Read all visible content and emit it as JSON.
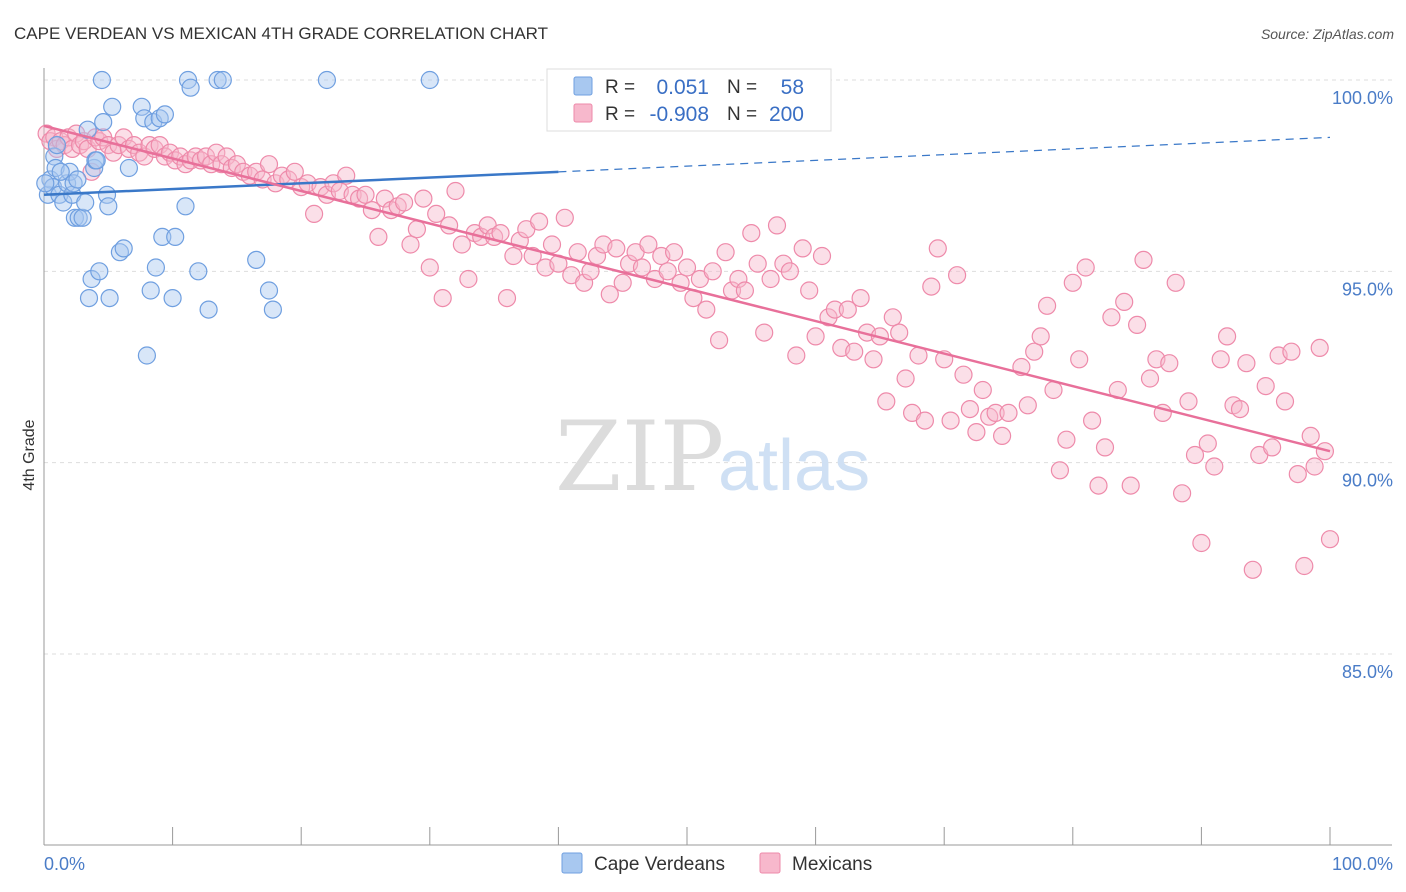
{
  "chart_data": {
    "type": "scatter",
    "title": "CAPE VERDEAN VS MEXICAN 4TH GRADE CORRELATION CHART",
    "source": "Source: ZipAtlas.com",
    "xlabel": "",
    "ylabel": "4th Grade",
    "xlim": [
      0,
      100
    ],
    "ylim": [
      80,
      100.8
    ],
    "x_tick_labels": {
      "left": "0.0%",
      "right": "100.0%"
    },
    "y_ticks": [
      {
        "value": 100,
        "label": "100.0%"
      },
      {
        "value": 95,
        "label": "95.0%"
      },
      {
        "value": 90,
        "label": "90.0%"
      },
      {
        "value": 85,
        "label": "85.0%"
      }
    ],
    "watermark": {
      "zip": "ZIP",
      "atlas": "atlas"
    },
    "colors": {
      "blue_fill": "#a8c8f0",
      "blue_stroke": "#6f9fe0",
      "blue_line": "#3a78c8",
      "pink_fill": "#f7b8cc",
      "pink_stroke": "#ee8aaa",
      "pink_line": "#e8709a",
      "grid": "#dddddd",
      "axis": "#999999"
    },
    "legend": {
      "rows": [
        {
          "r_label": "R =",
          "r_value": "0.051",
          "n_label": "N =",
          "n_value": "58",
          "series": "Cape Verdeans"
        },
        {
          "r_label": "R =",
          "r_value": "-0.908",
          "n_label": "N =",
          "n_value": "200",
          "series": "Mexicans"
        }
      ]
    },
    "series": [
      {
        "name": "Cape Verdeans",
        "regression": {
          "x0": 0,
          "y0": 97.0,
          "x1": 40,
          "y1": 97.6,
          "dash_x1": 100,
          "dash_y1": 98.5
        },
        "points": [
          [
            0.3,
            97.0
          ],
          [
            0.5,
            97.4
          ],
          [
            0.7,
            97.2
          ],
          [
            0.8,
            98.0
          ],
          [
            0.9,
            97.7
          ],
          [
            1.0,
            98.3
          ],
          [
            1.2,
            97.0
          ],
          [
            1.5,
            96.8
          ],
          [
            1.8,
            97.3
          ],
          [
            2.0,
            97.6
          ],
          [
            2.2,
            97.0
          ],
          [
            2.3,
            97.3
          ],
          [
            2.4,
            96.4
          ],
          [
            2.6,
            97.4
          ],
          [
            2.7,
            96.4
          ],
          [
            3.0,
            96.4
          ],
          [
            3.2,
            96.8
          ],
          [
            3.4,
            98.7
          ],
          [
            3.5,
            94.3
          ],
          [
            3.7,
            94.8
          ],
          [
            3.9,
            97.7
          ],
          [
            4.0,
            97.9
          ],
          [
            4.1,
            97.9
          ],
          [
            4.3,
            95.0
          ],
          [
            4.5,
            100.0
          ],
          [
            4.6,
            98.9
          ],
          [
            4.9,
            97.0
          ],
          [
            5.0,
            96.7
          ],
          [
            5.1,
            94.3
          ],
          [
            5.3,
            99.3
          ],
          [
            5.9,
            95.5
          ],
          [
            6.2,
            95.6
          ],
          [
            6.6,
            97.7
          ],
          [
            7.6,
            99.3
          ],
          [
            7.8,
            99.0
          ],
          [
            8.0,
            92.8
          ],
          [
            8.3,
            94.5
          ],
          [
            8.5,
            98.9
          ],
          [
            8.7,
            95.1
          ],
          [
            9.0,
            99.0
          ],
          [
            9.2,
            95.9
          ],
          [
            9.4,
            99.1
          ],
          [
            10.0,
            94.3
          ],
          [
            10.2,
            95.9
          ],
          [
            11.0,
            96.7
          ],
          [
            11.2,
            100.0
          ],
          [
            11.4,
            99.8
          ],
          [
            12.0,
            95.0
          ],
          [
            12.8,
            94.0
          ],
          [
            13.5,
            100.0
          ],
          [
            13.9,
            100.0
          ],
          [
            16.5,
            95.3
          ],
          [
            17.5,
            94.5
          ],
          [
            17.8,
            94.0
          ],
          [
            22.0,
            100.0
          ],
          [
            30.0,
            100.0
          ],
          [
            0.1,
            97.3
          ],
          [
            1.3,
            97.6
          ]
        ]
      },
      {
        "name": "Mexicans",
        "regression": {
          "x0": 0,
          "y0": 98.8,
          "x1": 100,
          "y1": 90.3
        },
        "points": [
          [
            0.2,
            98.6
          ],
          [
            0.5,
            98.4
          ],
          [
            0.8,
            98.5
          ],
          [
            1.0,
            98.2
          ],
          [
            1.3,
            98.4
          ],
          [
            1.6,
            98.3
          ],
          [
            1.9,
            98.5
          ],
          [
            2.2,
            98.2
          ],
          [
            2.5,
            98.6
          ],
          [
            2.8,
            98.3
          ],
          [
            3.1,
            98.4
          ],
          [
            3.4,
            98.2
          ],
          [
            3.7,
            97.6
          ],
          [
            4.0,
            98.5
          ],
          [
            4.3,
            98.4
          ],
          [
            4.6,
            98.5
          ],
          [
            5.0,
            98.3
          ],
          [
            5.4,
            98.1
          ],
          [
            5.8,
            98.3
          ],
          [
            6.2,
            98.5
          ],
          [
            6.6,
            98.2
          ],
          [
            7.0,
            98.3
          ],
          [
            7.4,
            98.1
          ],
          [
            7.8,
            98.0
          ],
          [
            8.2,
            98.3
          ],
          [
            8.6,
            98.2
          ],
          [
            9.0,
            98.3
          ],
          [
            9.4,
            98.0
          ],
          [
            9.8,
            98.1
          ],
          [
            10.2,
            97.9
          ],
          [
            10.6,
            98.0
          ],
          [
            11.0,
            97.8
          ],
          [
            11.4,
            97.9
          ],
          [
            11.8,
            98.0
          ],
          [
            12.2,
            97.9
          ],
          [
            12.6,
            98.0
          ],
          [
            13.0,
            97.8
          ],
          [
            13.4,
            98.1
          ],
          [
            13.8,
            97.8
          ],
          [
            14.2,
            98.0
          ],
          [
            14.6,
            97.7
          ],
          [
            15.0,
            97.8
          ],
          [
            15.5,
            97.6
          ],
          [
            16.0,
            97.5
          ],
          [
            16.5,
            97.6
          ],
          [
            17.0,
            97.4
          ],
          [
            17.5,
            97.8
          ],
          [
            18.0,
            97.3
          ],
          [
            18.5,
            97.5
          ],
          [
            19.0,
            97.4
          ],
          [
            19.5,
            97.6
          ],
          [
            20.0,
            97.2
          ],
          [
            20.5,
            97.3
          ],
          [
            21.0,
            96.5
          ],
          [
            21.5,
            97.2
          ],
          [
            22.0,
            97.0
          ],
          [
            22.5,
            97.3
          ],
          [
            23.0,
            97.1
          ],
          [
            23.5,
            97.5
          ],
          [
            24.0,
            97.0
          ],
          [
            24.5,
            96.9
          ],
          [
            25.0,
            97.0
          ],
          [
            25.5,
            96.6
          ],
          [
            26.0,
            95.9
          ],
          [
            26.5,
            96.9
          ],
          [
            27.0,
            96.6
          ],
          [
            27.5,
            96.7
          ],
          [
            28.0,
            96.8
          ],
          [
            28.5,
            95.7
          ],
          [
            29.0,
            96.1
          ],
          [
            29.5,
            96.9
          ],
          [
            30.0,
            95.1
          ],
          [
            30.5,
            96.5
          ],
          [
            31.0,
            94.3
          ],
          [
            31.5,
            96.2
          ],
          [
            32.0,
            97.1
          ],
          [
            32.5,
            95.7
          ],
          [
            33.0,
            94.8
          ],
          [
            33.5,
            96.0
          ],
          [
            34.0,
            95.9
          ],
          [
            34.5,
            96.2
          ],
          [
            35.0,
            95.9
          ],
          [
            35.5,
            96.0
          ],
          [
            36.0,
            94.3
          ],
          [
            36.5,
            95.4
          ],
          [
            37.0,
            95.8
          ],
          [
            37.5,
            96.1
          ],
          [
            38.0,
            95.4
          ],
          [
            38.5,
            96.3
          ],
          [
            39.0,
            95.1
          ],
          [
            39.5,
            95.7
          ],
          [
            40.0,
            95.2
          ],
          [
            40.5,
            96.4
          ],
          [
            41.0,
            94.9
          ],
          [
            41.5,
            95.5
          ],
          [
            42.0,
            94.7
          ],
          [
            42.5,
            95.0
          ],
          [
            43.0,
            95.4
          ],
          [
            43.5,
            95.7
          ],
          [
            44.0,
            94.4
          ],
          [
            44.5,
            95.6
          ],
          [
            45.0,
            94.7
          ],
          [
            45.5,
            95.2
          ],
          [
            46.0,
            95.5
          ],
          [
            46.5,
            95.1
          ],
          [
            47.0,
            95.7
          ],
          [
            47.5,
            94.8
          ],
          [
            48.0,
            95.4
          ],
          [
            48.5,
            95.0
          ],
          [
            49.0,
            95.5
          ],
          [
            49.5,
            94.7
          ],
          [
            50.0,
            95.1
          ],
          [
            50.5,
            94.3
          ],
          [
            51.0,
            94.8
          ],
          [
            51.5,
            94.0
          ],
          [
            52.0,
            95.0
          ],
          [
            52.5,
            93.2
          ],
          [
            53.0,
            95.5
          ],
          [
            53.5,
            94.5
          ],
          [
            54.0,
            94.8
          ],
          [
            54.5,
            94.5
          ],
          [
            55.0,
            96.0
          ],
          [
            55.5,
            95.2
          ],
          [
            56.0,
            93.4
          ],
          [
            56.5,
            94.8
          ],
          [
            57.0,
            96.2
          ],
          [
            57.5,
            95.2
          ],
          [
            58.0,
            95.0
          ],
          [
            58.5,
            92.8
          ],
          [
            59.0,
            95.6
          ],
          [
            59.5,
            94.5
          ],
          [
            60.0,
            93.3
          ],
          [
            60.5,
            95.4
          ],
          [
            61.0,
            93.8
          ],
          [
            61.5,
            94.0
          ],
          [
            62.0,
            93.0
          ],
          [
            62.5,
            94.0
          ],
          [
            63.0,
            92.9
          ],
          [
            63.5,
            94.3
          ],
          [
            64.0,
            93.4
          ],
          [
            64.5,
            92.7
          ],
          [
            65.0,
            93.3
          ],
          [
            65.5,
            91.6
          ],
          [
            66.0,
            93.8
          ],
          [
            66.5,
            93.4
          ],
          [
            67.0,
            92.2
          ],
          [
            67.5,
            91.3
          ],
          [
            68.0,
            92.8
          ],
          [
            68.5,
            91.1
          ],
          [
            69.0,
            94.6
          ],
          [
            69.5,
            95.6
          ],
          [
            70.0,
            92.7
          ],
          [
            70.5,
            91.1
          ],
          [
            71.0,
            94.9
          ],
          [
            71.5,
            92.3
          ],
          [
            72.0,
            91.4
          ],
          [
            72.5,
            90.8
          ],
          [
            73.0,
            91.9
          ],
          [
            73.5,
            91.2
          ],
          [
            74.0,
            91.3
          ],
          [
            74.5,
            90.7
          ],
          [
            75.0,
            91.3
          ],
          [
            76.0,
            92.5
          ],
          [
            76.5,
            91.5
          ],
          [
            77.0,
            92.9
          ],
          [
            77.5,
            93.3
          ],
          [
            78.0,
            94.1
          ],
          [
            78.5,
            91.9
          ],
          [
            79.0,
            89.8
          ],
          [
            79.5,
            90.6
          ],
          [
            80.0,
            94.7
          ],
          [
            80.5,
            92.7
          ],
          [
            81.0,
            95.1
          ],
          [
            81.5,
            91.1
          ],
          [
            82.0,
            89.4
          ],
          [
            82.5,
            90.4
          ],
          [
            83.0,
            93.8
          ],
          [
            83.5,
            91.9
          ],
          [
            84.0,
            94.2
          ],
          [
            84.5,
            89.4
          ],
          [
            85.0,
            93.6
          ],
          [
            85.5,
            95.3
          ],
          [
            86.0,
            92.2
          ],
          [
            86.5,
            92.7
          ],
          [
            87.0,
            91.3
          ],
          [
            87.5,
            92.6
          ],
          [
            88.0,
            94.7
          ],
          [
            88.5,
            89.2
          ],
          [
            89.0,
            91.6
          ],
          [
            89.5,
            90.2
          ],
          [
            90.0,
            87.9
          ],
          [
            90.5,
            90.5
          ],
          [
            91.0,
            89.9
          ],
          [
            91.5,
            92.7
          ],
          [
            92.0,
            93.3
          ],
          [
            92.5,
            91.5
          ],
          [
            93.0,
            91.4
          ],
          [
            93.5,
            92.6
          ],
          [
            94.0,
            87.2
          ],
          [
            94.5,
            90.2
          ],
          [
            95.0,
            92.0
          ],
          [
            95.5,
            90.4
          ],
          [
            96.0,
            92.8
          ],
          [
            96.5,
            91.6
          ],
          [
            97.0,
            92.9
          ],
          [
            97.5,
            89.7
          ],
          [
            98.0,
            87.3
          ],
          [
            98.5,
            90.7
          ],
          [
            98.8,
            89.9
          ],
          [
            99.2,
            93.0
          ],
          [
            99.6,
            90.3
          ],
          [
            100.0,
            88.0
          ]
        ]
      }
    ]
  }
}
